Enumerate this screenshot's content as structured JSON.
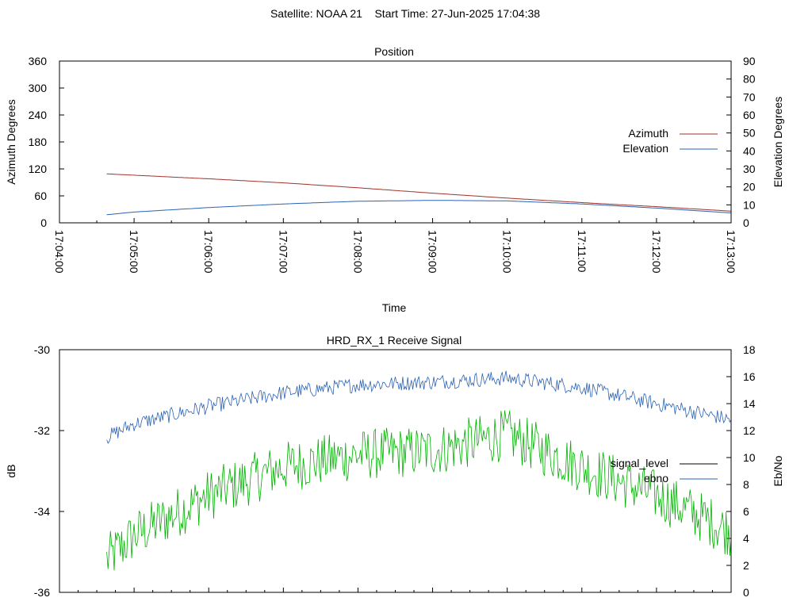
{
  "figure": {
    "title": "Satellite: NOAA 21    Start Time: 27-Jun-2025 17:04:38"
  },
  "colors": {
    "azimuth": "#a0302a",
    "elevation": "#2b62b4",
    "signal_level": "#000000",
    "ebno_legend": "#2b62b4",
    "signal_trace": "#00b000",
    "ebno_trace": "#2b62b4"
  },
  "chart_data": [
    {
      "type": "line",
      "title": "Position",
      "xlabel": "Time",
      "ylabel": "Azimuth Degrees",
      "y2label": "Elevation Degrees",
      "xlim": [
        "17:04:00",
        "17:13:00"
      ],
      "xticks": [
        "17:04:00",
        "17:05:00",
        "17:06:00",
        "17:07:00",
        "17:08:00",
        "17:09:00",
        "17:10:00",
        "17:11:00",
        "17:12:00",
        "17:13:00"
      ],
      "ylim": [
        0,
        360
      ],
      "yticks": [
        0,
        60,
        120,
        180,
        240,
        300,
        360
      ],
      "y2lim": [
        0,
        90
      ],
      "y2ticks": [
        0,
        10,
        20,
        30,
        40,
        50,
        60,
        70,
        80,
        90
      ],
      "legend_position": "right",
      "series": [
        {
          "name": "Azimuth",
          "axis": "y1",
          "x": [
            "17:04:38",
            "17:05:00",
            "17:06:00",
            "17:07:00",
            "17:08:00",
            "17:09:00",
            "17:10:00",
            "17:11:00",
            "17:12:00",
            "17:13:00"
          ],
          "values": [
            109,
            106,
            98,
            89,
            78,
            66,
            55,
            45,
            36,
            26
          ]
        },
        {
          "name": "Elevation",
          "axis": "y2",
          "x": [
            "17:04:38",
            "17:05:00",
            "17:06:00",
            "17:07:00",
            "17:08:00",
            "17:09:00",
            "17:10:00",
            "17:11:00",
            "17:12:00",
            "17:13:00"
          ],
          "values": [
            4.5,
            6,
            8.5,
            10.5,
            12,
            12.5,
            12.2,
            10.5,
            8.2,
            5.5
          ]
        }
      ]
    },
    {
      "type": "line",
      "title": "HRD_RX_1 Receive Signal",
      "ylabel": "dB",
      "y2label": "Eb/No",
      "xlim": [
        "17:04:00",
        "17:13:00"
      ],
      "ylim": [
        -36,
        -30
      ],
      "yticks": [
        -36,
        -34,
        -32,
        -30
      ],
      "y2lim": [
        0,
        18
      ],
      "y2ticks": [
        0,
        2,
        4,
        6,
        8,
        10,
        12,
        14,
        16,
        18
      ],
      "legend_position": "right",
      "series": [
        {
          "name": "signal_level",
          "axis": "y1",
          "x": [
            "17:04:38",
            "17:05:00",
            "17:06:00",
            "17:07:00",
            "17:08:00",
            "17:09:00",
            "17:10:00",
            "17:11:00",
            "17:12:00",
            "17:13:00"
          ],
          "values": [
            -35.2,
            -34.6,
            -33.6,
            -32.9,
            -32.6,
            -32.5,
            -32.1,
            -32.9,
            -33.6,
            -34.5
          ]
        },
        {
          "name": "ebno",
          "axis": "y2",
          "x": [
            "17:04:38",
            "17:05:00",
            "17:06:00",
            "17:07:00",
            "17:08:00",
            "17:09:00",
            "17:10:00",
            "17:11:00",
            "17:12:00",
            "17:13:00"
          ],
          "values": [
            11.5,
            12.5,
            13.8,
            14.8,
            15.4,
            15.6,
            15.9,
            15.2,
            14.0,
            12.8
          ]
        }
      ]
    }
  ]
}
